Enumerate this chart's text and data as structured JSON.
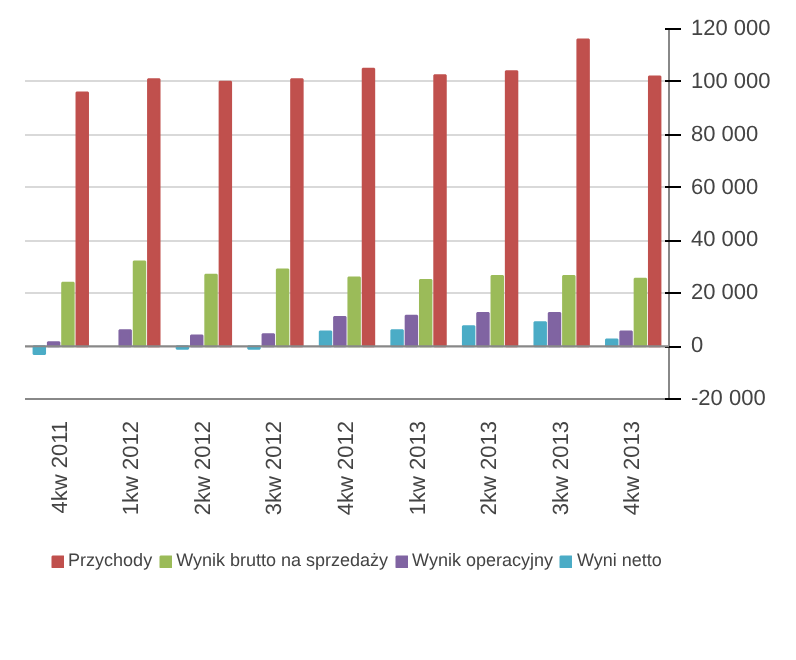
{
  "chart_data": {
    "type": "bar",
    "categories": [
      "4kw 2011",
      "1kw 2012",
      "2kw 2012",
      "3kw 2012",
      "4kw 2012",
      "1kw 2013",
      "2kw 2013",
      "3kw 2013",
      "4kw 2013"
    ],
    "series": [
      {
        "name": "Przychody",
        "color": "#c0504d",
        "values": [
          96000,
          101000,
          100000,
          101000,
          105000,
          102500,
          104000,
          116000,
          102000
        ]
      },
      {
        "name": "Wynik brutto na sprzedaży",
        "color": "#9bbb59",
        "values": [
          24000,
          32000,
          27000,
          29000,
          26000,
          25000,
          26500,
          26500,
          25500
        ]
      },
      {
        "name": "Wynik operacyjny",
        "color": "#8064a2",
        "values": [
          1500,
          6000,
          4000,
          4500,
          11000,
          11500,
          12500,
          12500,
          5500
        ]
      },
      {
        "name": "Wyni netto",
        "color": "#4bacc6",
        "values": [
          -3000,
          null,
          -1000,
          -1000,
          5500,
          6000,
          7500,
          9000,
          2500
        ]
      }
    ],
    "ylim": [
      -20000,
      120000
    ],
    "yticks": [
      {
        "value": -20000,
        "label": "-20 000"
      },
      {
        "value": 0,
        "label": "0"
      },
      {
        "value": 20000,
        "label": "20 000"
      },
      {
        "value": 40000,
        "label": "40 000"
      },
      {
        "value": 60000,
        "label": "60 000"
      },
      {
        "value": 80000,
        "label": "80 000"
      },
      {
        "value": 100000,
        "label": "100 000"
      },
      {
        "value": 120000,
        "label": "120 000"
      }
    ],
    "grid": "y",
    "legend": "bottom"
  }
}
